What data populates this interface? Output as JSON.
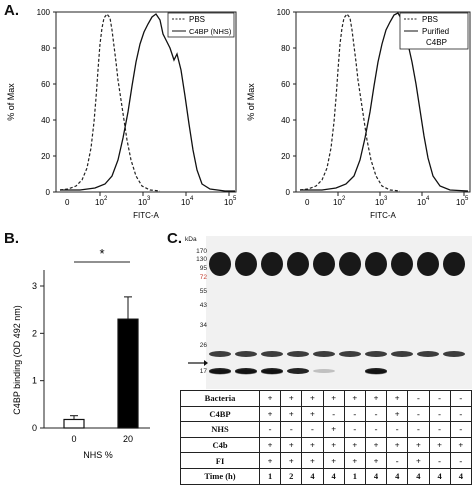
{
  "panel_labels": {
    "a": "A.",
    "b": "B.",
    "c": "C."
  },
  "histogram_left": {
    "ylabel": "% of Max",
    "xlabel": "FITC-A",
    "yticks": [
      "0",
      "20",
      "40",
      "60",
      "80",
      "100"
    ],
    "xticks": [
      "10",
      "10",
      "10",
      "10",
      "10"
    ],
    "xtick_exponents": [
      "2",
      "3",
      "4",
      "5"
    ],
    "legend": [
      "PBS",
      "C4BP (NHS)"
    ]
  },
  "histogram_right": {
    "ylabel": "% of Max",
    "xlabel": "FITC-A",
    "yticks": [
      "0",
      "20",
      "40",
      "60",
      "80",
      "100"
    ],
    "xticks": [
      "10",
      "10",
      "10",
      "10",
      "10"
    ],
    "xtick_exponents": [
      "2",
      "3",
      "4",
      "5"
    ],
    "legend": [
      "PBS",
      "Purified",
      "C4BP"
    ]
  },
  "chart_data": {
    "type": "bar",
    "categories": [
      "0",
      "20"
    ],
    "values": [
      0.18,
      2.3
    ],
    "errors": [
      0.08,
      0.47
    ],
    "ylabel": "C4BP binding (OD 492 nm)",
    "xlabel": "NHS %",
    "yticks": [
      "0",
      "1",
      "2",
      "3"
    ],
    "ylim": [
      0,
      3
    ],
    "significance": "*",
    "colors": [
      "#ffffff",
      "#000000"
    ]
  },
  "blot": {
    "unit_label": "kDa",
    "markers": [
      "170",
      "130",
      "95",
      "72",
      "55",
      "43",
      "34",
      "26",
      "17"
    ],
    "marker_colors": [
      "#222222",
      "#222222",
      "#222222",
      "#c0392b",
      "#222222",
      "#222222",
      "#222222",
      "#222222",
      "#222222"
    ]
  },
  "conditions_table": {
    "rows": [
      {
        "label": "Bacteria",
        "values": [
          "+",
          "+",
          "+",
          "+",
          "+",
          "+",
          "+",
          "-",
          "-",
          "-"
        ]
      },
      {
        "label": "C4BP",
        "values": [
          "+",
          "+",
          "+",
          "-",
          "-",
          "-",
          "+",
          "-",
          "-",
          "-"
        ]
      },
      {
        "label": "NHS",
        "values": [
          "-",
          "-",
          "-",
          "+",
          "-",
          "-",
          "-",
          "-",
          "-",
          "-"
        ]
      },
      {
        "label": "C4b",
        "values": [
          "+",
          "+",
          "+",
          "+",
          "+",
          "+",
          "+",
          "+",
          "+",
          "+"
        ]
      },
      {
        "label": "FI",
        "values": [
          "+",
          "+",
          "+",
          "+",
          "+",
          "+",
          "-",
          "+",
          "-",
          "-"
        ]
      },
      {
        "label": "Time (h)",
        "values": [
          "1",
          "2",
          "4",
          "4",
          "1",
          "4",
          "4",
          "4",
          "4",
          "4"
        ]
      }
    ]
  }
}
